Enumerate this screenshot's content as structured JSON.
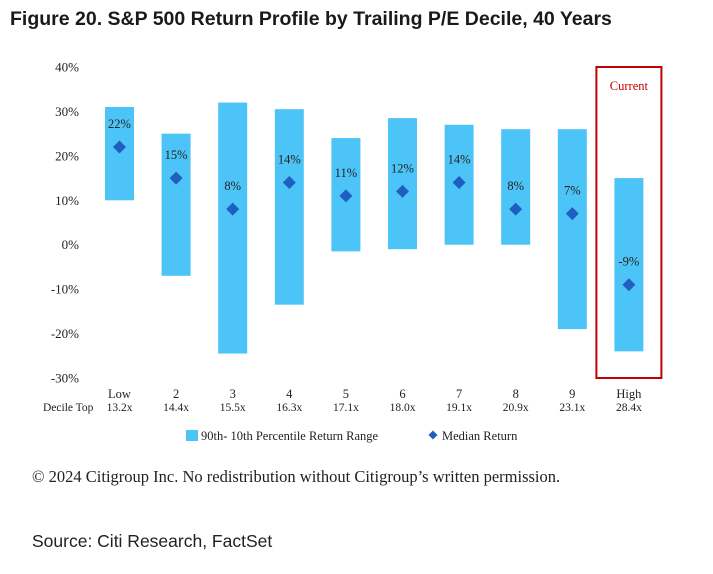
{
  "title": "Figure 20. S&P 500 Return Profile by Trailing P/E Decile, 40 Years",
  "notice": "© 2024 Citigroup Inc. No redistribution without Citigroup’s written permission.",
  "source": "Source: Citi Research, FactSet",
  "chart_data": {
    "type": "bar",
    "title": "Figure 20. S&P 500 Return Profile by Trailing P/E Decile, 40 Years",
    "categories": [
      "Low",
      "2",
      "3",
      "4",
      "5",
      "6",
      "7",
      "8",
      "9",
      "High"
    ],
    "decile_top_label": "Decile Top",
    "decile_tops": [
      "13.2x",
      "14.4x",
      "15.5x",
      "16.3x",
      "17.1x",
      "18.0x",
      "19.1x",
      "20.9x",
      "23.1x",
      "28.4x"
    ],
    "series": [
      {
        "name": "90th- 10th Percentile Return Range",
        "low": [
          10,
          -7,
          -24.5,
          -13.5,
          -1.5,
          -1,
          0,
          0,
          -19,
          -24
        ],
        "high": [
          31,
          25,
          32,
          30.5,
          24,
          28.5,
          27,
          26,
          26,
          15
        ]
      },
      {
        "name": "Median Return",
        "values": [
          22,
          15,
          8,
          14,
          11,
          12,
          14,
          8,
          7,
          -9
        ],
        "labels": [
          "22%",
          "15%",
          "8%",
          "14%",
          "11%",
          "12%",
          "14%",
          "8%",
          "7%",
          "-9%"
        ]
      }
    ],
    "ylim": [
      -30,
      40
    ],
    "yticks": [
      "-30%",
      "-20%",
      "-10%",
      "0%",
      "10%",
      "20%",
      "30%",
      "40%"
    ],
    "highlight": {
      "index": 9,
      "label": "Current",
      "color": "#c00000"
    },
    "colors": {
      "range": "#4dc4f7",
      "median": "#1f5fbf",
      "text": "#222222"
    },
    "legend_position": "bottom"
  }
}
